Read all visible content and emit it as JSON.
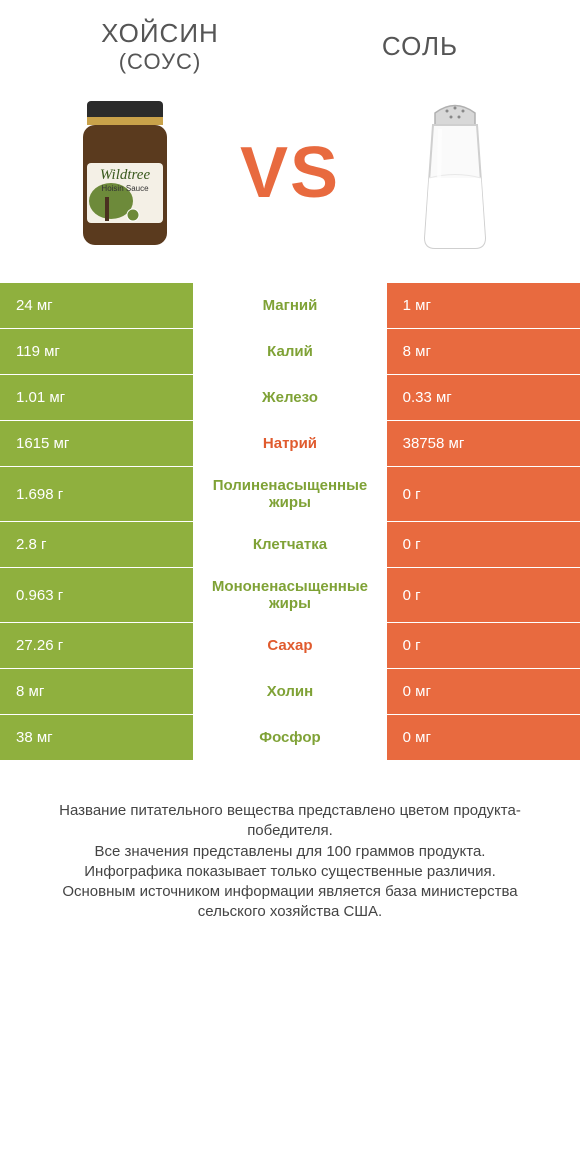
{
  "header": {
    "left_title": "ХОЙСИН",
    "left_sub": "(СОУС)",
    "right_title": "СОЛЬ",
    "vs_label": "VS"
  },
  "colors": {
    "left_col": "#8fb03e",
    "right_col": "#e86a3f",
    "left_text": "#7fa236",
    "right_text": "#e05b2e",
    "row_border": "#ffffff",
    "page_bg": "#ffffff"
  },
  "nutrients": [
    {
      "name": "Магний",
      "left": "24 мг",
      "right": "1 мг",
      "winner": "left"
    },
    {
      "name": "Калий",
      "left": "119 мг",
      "right": "8 мг",
      "winner": "left"
    },
    {
      "name": "Железо",
      "left": "1.01 мг",
      "right": "0.33 мг",
      "winner": "left"
    },
    {
      "name": "Натрий",
      "left": "1615 мг",
      "right": "38758 мг",
      "winner": "right"
    },
    {
      "name": "Полиненасыщенные жиры",
      "left": "1.698 г",
      "right": "0 г",
      "winner": "left"
    },
    {
      "name": "Клетчатка",
      "left": "2.8 г",
      "right": "0 г",
      "winner": "left"
    },
    {
      "name": "Мононенасыщенные жиры",
      "left": "0.963 г",
      "right": "0 г",
      "winner": "left"
    },
    {
      "name": "Сахар",
      "left": "27.26 г",
      "right": "0 г",
      "winner": "right"
    },
    {
      "name": "Холин",
      "left": "8 мг",
      "right": "0 мг",
      "winner": "left"
    },
    {
      "name": "Фосфор",
      "left": "38 мг",
      "right": "0 мг",
      "winner": "left"
    }
  ],
  "footer": {
    "line1": "Название питательного вещества представлено цветом продукта-победителя.",
    "line2": "Все значения представлены для 100 граммов продукта.",
    "line3": "Инфографика показывает только существенные различия.",
    "line4": "Основным источником информации является база министерства сельского хозяйства США."
  },
  "jar_label": {
    "brand": "Wildtree",
    "product": "Hoisin Sauce"
  }
}
